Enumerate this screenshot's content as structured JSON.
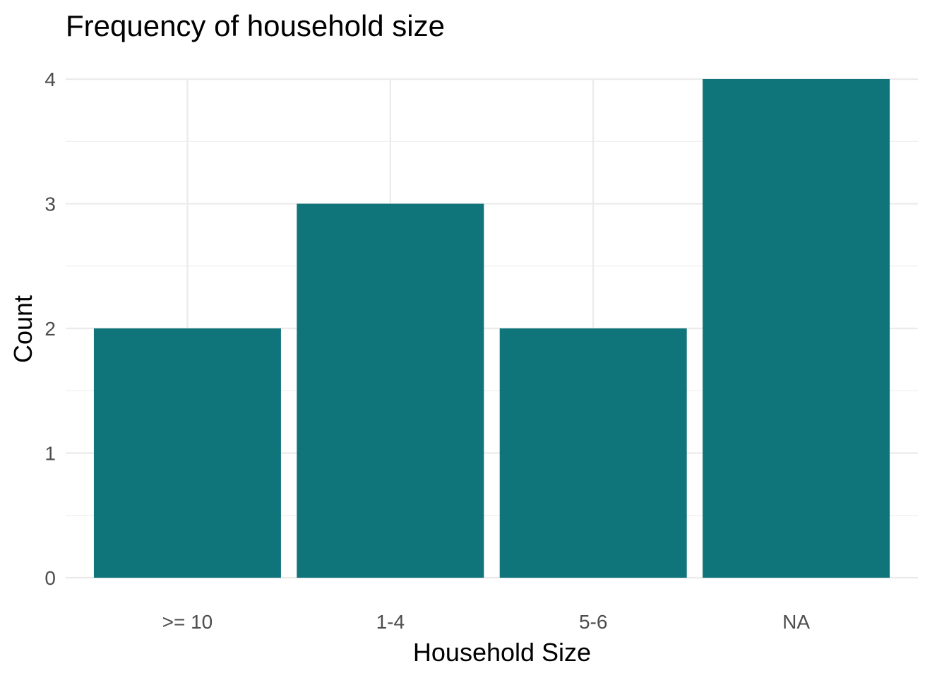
{
  "chart_data": {
    "type": "bar",
    "title": "Frequency of household size",
    "xlabel": "Household Size",
    "ylabel": "Count",
    "categories": [
      ">= 10",
      "1-4",
      "5-6",
      "NA"
    ],
    "values": [
      2,
      3,
      2,
      4
    ],
    "ylim": [
      0,
      4
    ],
    "yticks": [
      0,
      1,
      2,
      3,
      4
    ],
    "grid": true,
    "bar_color": "#10757A",
    "legend": "none"
  }
}
